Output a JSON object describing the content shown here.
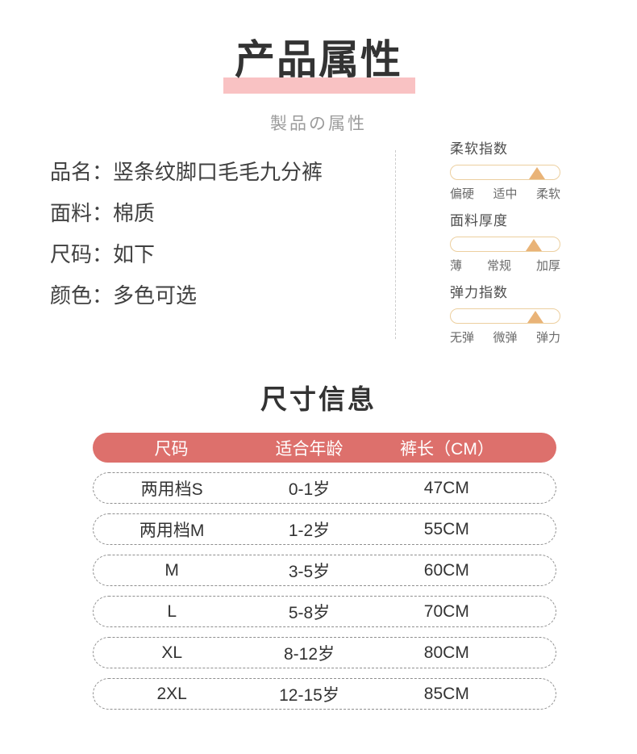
{
  "header": {
    "title": "产品属性",
    "subtitle": "製品の属性"
  },
  "product_info": {
    "items": [
      {
        "label": "品名：",
        "value": "竖条纹脚口毛毛九分裤"
      },
      {
        "label": "面料：",
        "value": "棉质"
      },
      {
        "label": "尺码：",
        "value": "如下"
      },
      {
        "label": "颜色：",
        "value": "多色可选"
      }
    ]
  },
  "attribute_sliders": [
    {
      "title": "柔软指数",
      "ticks": [
        "偏硬",
        "适中",
        "柔软"
      ],
      "marker_percent": 79.5
    },
    {
      "title": "面料厚度",
      "ticks": [
        "薄",
        "常规",
        "加厚"
      ],
      "marker_percent": 76.5
    },
    {
      "title": "弹力指数",
      "ticks": [
        "无弹",
        "微弹",
        "弹力"
      ],
      "marker_percent": 78
    }
  ],
  "size_section": {
    "title": "尺寸信息",
    "table": {
      "headers": [
        "尺码",
        "适合年龄",
        "裤长（CM）"
      ],
      "rows": [
        [
          "两用档S",
          "0-1岁",
          "47CM"
        ],
        [
          "两用档M",
          "1-2岁",
          "55CM"
        ],
        [
          "M",
          "3-5岁",
          "60CM"
        ],
        [
          "L",
          "5-8岁",
          "70CM"
        ],
        [
          "XL",
          "8-12岁",
          "80CM"
        ],
        [
          "2XL",
          "12-15岁",
          "85CM"
        ]
      ]
    }
  },
  "colors": {
    "title_highlight": "#f9c2c3",
    "table_header_bg": "#dd706c",
    "table_header_text": "#ffffff",
    "slider_track_border": "#eccf9f",
    "slider_marker": "#e9b377",
    "title_text": "#333333",
    "body_text": "#404040"
  }
}
